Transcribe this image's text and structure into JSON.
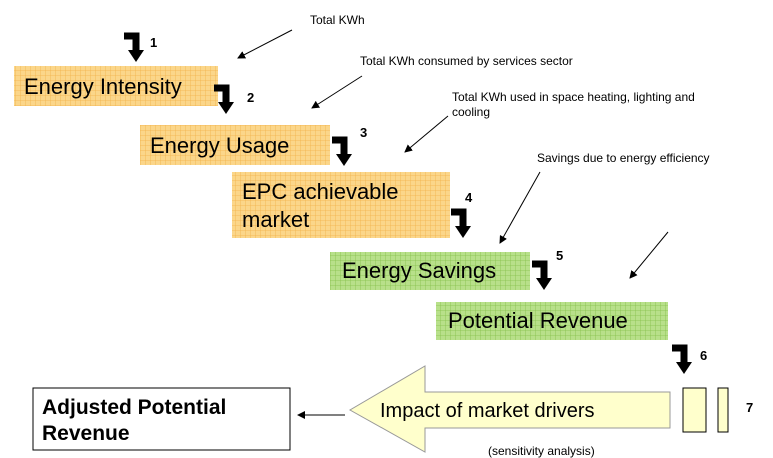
{
  "steps": [
    {
      "number": "1",
      "label": "Energy Intensity",
      "note": "Total KWh"
    },
    {
      "number": "2",
      "label": "Energy Usage",
      "note": "Total KWh consumed by services sector"
    },
    {
      "number": "3",
      "label": [
        "EPC achievable",
        "market"
      ],
      "note": [
        "Total KWh used in space heating, lighting and",
        "cooling"
      ]
    },
    {
      "number": "4",
      "label": "Energy Savings",
      "note": "Savings due to energy efficiency"
    },
    {
      "number": "5",
      "label": "Potential Revenue"
    },
    {
      "number": "6",
      "label": "Impact of market drivers",
      "note": "(sensitivity analysis)"
    },
    {
      "number": "7"
    }
  ],
  "result": [
    "Adjusted Potential",
    "Revenue"
  ]
}
